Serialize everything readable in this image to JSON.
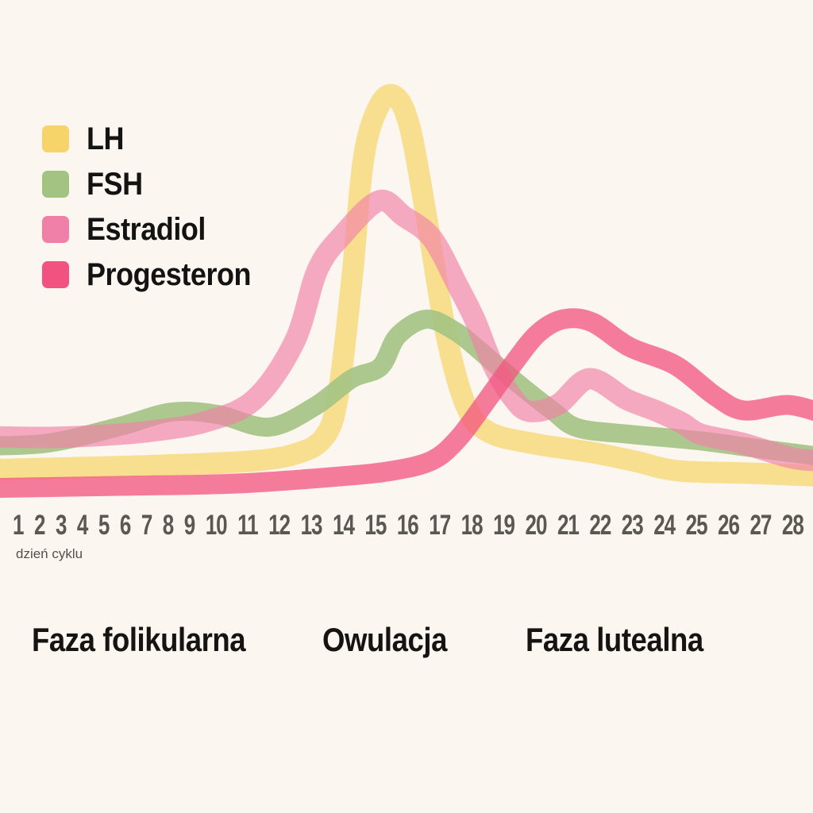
{
  "x_axis": {
    "label": "dzień cyklu",
    "day_labels": [
      "1",
      "2",
      "3",
      "4",
      "5",
      "6",
      "7",
      "8",
      "9",
      "10",
      "11",
      "12",
      "13",
      "14",
      "15",
      "16",
      "17",
      "18",
      "19",
      "20",
      "21",
      "22",
      "23",
      "24",
      "25",
      "26",
      "27",
      "28"
    ]
  },
  "phases": [
    {
      "label": "Faza folikularna"
    },
    {
      "label": "Owulacja"
    },
    {
      "label": "Faza lutealna"
    }
  ],
  "colors": {
    "background": "#FBF6EF",
    "axis_text": "#5B5853",
    "caption_text": "#53504B",
    "phase_text": "#151412",
    "lh": "#F6D46A",
    "fsh": "#A3C383",
    "estradiol": "#F180A8",
    "progesteron": "#F2537E"
  },
  "chart_data": {
    "type": "line",
    "title": "",
    "xlabel": "dzień cyklu",
    "ylabel": "",
    "x_range": [
      1,
      28
    ],
    "y_note": "relative hormone level 0-100, no y-axis shown in original",
    "grid": false,
    "legend_position": "top-left",
    "series": [
      {
        "name": "LH",
        "color": "#F6D46A",
        "opacity": 0.72,
        "stroke_width": 27,
        "points": [
          [
            -0.5,
            6
          ],
          [
            3,
            6.6
          ],
          [
            6,
            7.2
          ],
          [
            9,
            8.2
          ],
          [
            10.6,
            10
          ],
          [
            11.6,
            14
          ],
          [
            12.1,
            24
          ],
          [
            12.6,
            54
          ],
          [
            13,
            84
          ],
          [
            13.5,
            97
          ],
          [
            14.05,
            100.4
          ],
          [
            14.6,
            93
          ],
          [
            15.2,
            70
          ],
          [
            15.9,
            40
          ],
          [
            16.6,
            22
          ],
          [
            17.4,
            15.5
          ],
          [
            19,
            12.6
          ],
          [
            21,
            10.4
          ],
          [
            22.5,
            8.2
          ],
          [
            24,
            5.8
          ],
          [
            26.5,
            5.2
          ],
          [
            29,
            4.5
          ]
        ]
      },
      {
        "name": "FSH",
        "color": "#A3C383",
        "opacity": 0.9,
        "stroke_width": 24,
        "points": [
          [
            -0.5,
            12
          ],
          [
            2,
            12.8
          ],
          [
            4.5,
            17
          ],
          [
            6.3,
            20.6
          ],
          [
            7.9,
            20
          ],
          [
            9.7,
            16.8
          ],
          [
            11.3,
            22
          ],
          [
            12.6,
            29
          ],
          [
            13.6,
            32
          ],
          [
            14.2,
            39.8
          ],
          [
            15.2,
            44
          ],
          [
            16.2,
            41
          ],
          [
            17,
            36.5
          ],
          [
            18.2,
            29
          ],
          [
            19.6,
            21
          ],
          [
            20.5,
            16.6
          ],
          [
            22.3,
            15
          ],
          [
            24.7,
            13.4
          ],
          [
            26.7,
            11.5
          ],
          [
            29,
            9.4
          ]
        ]
      },
      {
        "name": "Estradiol",
        "color": "#F180A8",
        "opacity": 0.65,
        "stroke_width": 27,
        "points": [
          [
            -0.5,
            14.5
          ],
          [
            2,
            14.2
          ],
          [
            4,
            14.8
          ],
          [
            5.6,
            15.8
          ],
          [
            7.5,
            18.2
          ],
          [
            9.2,
            23.8
          ],
          [
            10.6,
            38.4
          ],
          [
            11.4,
            56.4
          ],
          [
            12.3,
            65.4
          ],
          [
            13.55,
            73.8
          ],
          [
            14.4,
            70
          ],
          [
            15.4,
            64.4
          ],
          [
            16.3,
            52.4
          ],
          [
            16.9,
            43.8
          ],
          [
            17.5,
            33
          ],
          [
            18.2,
            24.4
          ],
          [
            18.8,
            20.8
          ],
          [
            19.8,
            22.5
          ],
          [
            20.9,
            29
          ],
          [
            22.2,
            23.8
          ],
          [
            23.2,
            21
          ],
          [
            24.1,
            18
          ],
          [
            24.8,
            15
          ],
          [
            26.2,
            12.8
          ],
          [
            28,
            9
          ],
          [
            29,
            8.4
          ]
        ]
      },
      {
        "name": "Progesteron",
        "color": "#F2537E",
        "opacity": 0.75,
        "stroke_width": 25,
        "points": [
          [
            -0.5,
            1.4
          ],
          [
            4.5,
            2
          ],
          [
            8.6,
            2.6
          ],
          [
            12.2,
            4.4
          ],
          [
            14,
            5.8
          ],
          [
            15.4,
            8.4
          ],
          [
            16.3,
            13.8
          ],
          [
            17.2,
            22.4
          ],
          [
            18.2,
            32.4
          ],
          [
            19.1,
            40.4
          ],
          [
            20,
            44
          ],
          [
            21,
            43.2
          ],
          [
            22.3,
            37
          ],
          [
            23.9,
            32.4
          ],
          [
            25.3,
            24.6
          ],
          [
            26.3,
            21
          ],
          [
            27.8,
            22.4
          ],
          [
            28.9,
            20.6
          ]
        ]
      }
    ],
    "annotations": {
      "phases": [
        "Faza folikularna",
        "Owulacja",
        "Faza lutealna"
      ]
    }
  }
}
